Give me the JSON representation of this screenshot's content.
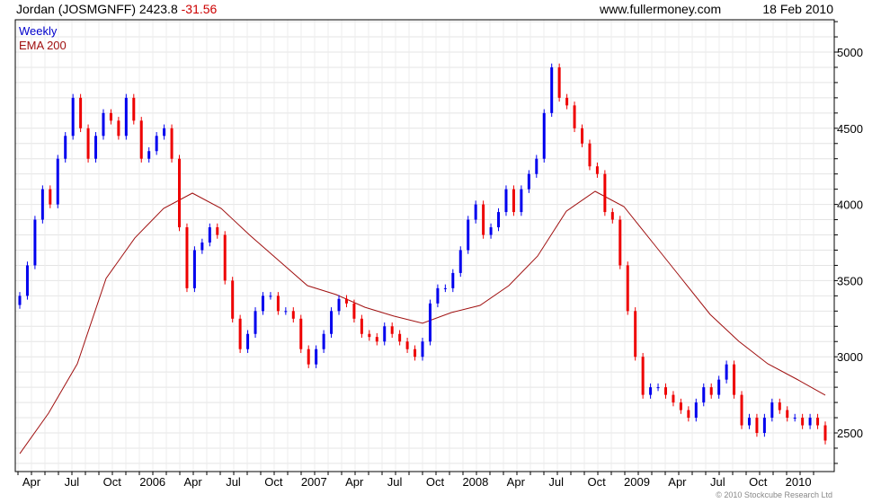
{
  "header": {
    "instrument": "Jordan (JOSMGNFF) 2423.8",
    "change": "-31.56",
    "site": "www.fullermoney.com",
    "date": "18 Feb 2010"
  },
  "footer": {
    "copyright": "© 2010 Stockcube Research Ltd"
  },
  "colors": {
    "up": "#0000ee",
    "down": "#ee0000",
    "ema": "#a01010",
    "title": "#000000",
    "legend_weekly": "#0000cc",
    "legend_ema": "#a01010"
  },
  "chart_data": {
    "type": "line",
    "title": "Jordan (JOSMGNFF) 2423.8 -31.56",
    "legend": [
      "Weekly",
      "EMA 200"
    ],
    "legend_position": "top-left",
    "ylim": [
      2250,
      5200
    ],
    "yticks": [
      2500,
      3000,
      3500,
      4000,
      4500,
      5000
    ],
    "xtick_labels": [
      "Apr",
      "Jul",
      "Oct",
      "2006",
      "Apr",
      "Jul",
      "Oct",
      "2007",
      "Apr",
      "Jul",
      "Oct",
      "2008",
      "Apr",
      "Jul",
      "Oct",
      "2009",
      "Apr",
      "Jul",
      "Oct",
      "2010"
    ],
    "grid": true,
    "weekly_close": [
      3400,
      3600,
      3900,
      4100,
      4000,
      4300,
      4450,
      4700,
      4500,
      4300,
      4450,
      4600,
      4550,
      4450,
      4700,
      4550,
      4300,
      4350,
      4450,
      4500,
      4300,
      3850,
      3450,
      3700,
      3750,
      3850,
      3800,
      3500,
      3250,
      3050,
      3150,
      3300,
      3400,
      3400,
      3300,
      3300,
      3250,
      3050,
      2950,
      3050,
      3150,
      3300,
      3380,
      3350,
      3250,
      3150,
      3130,
      3100,
      3200,
      3150,
      3100,
      3050,
      3000,
      3100,
      3350,
      3450,
      3450,
      3550,
      3700,
      3900,
      4000,
      3800,
      3850,
      3950,
      4100,
      3950,
      4100,
      4200,
      4300,
      4600,
      4900,
      4700,
      4650,
      4500,
      4400,
      4250,
      4200,
      3950,
      3900,
      3600,
      3300,
      3000,
      2750,
      2800,
      2800,
      2750,
      2700,
      2650,
      2600,
      2700,
      2800,
      2750,
      2850,
      2950,
      2750,
      2550,
      2600,
      2500,
      2600,
      2700,
      2650,
      2600,
      2600,
      2550,
      2600,
      2550,
      2450
    ],
    "ema_200": [
      2364,
      2630,
      2954,
      3514,
      3780,
      3974,
      4074,
      3974,
      3797,
      3632,
      3467,
      3408,
      3325,
      3267,
      3220,
      3290,
      3337,
      3467,
      3661,
      3956,
      4086,
      3986,
      3750,
      3514,
      3278,
      3101,
      2954,
      2854,
      2748
    ],
    "ema_x_fraction_note": "evenly spaced across the date range"
  }
}
